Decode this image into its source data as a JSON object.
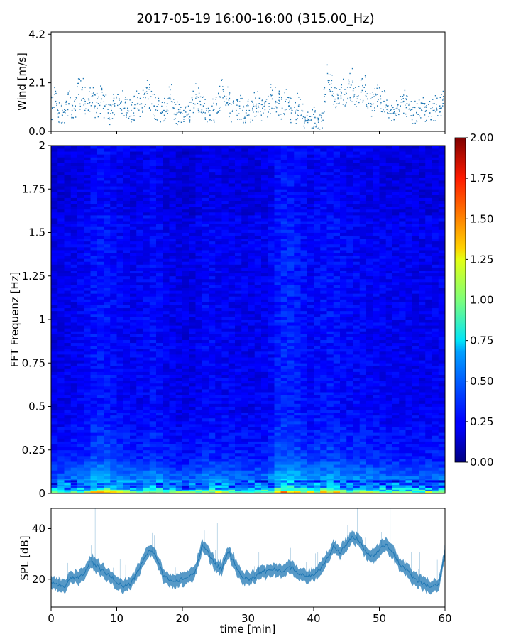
{
  "chart_data": [
    {
      "type": "scatter",
      "title": "2017-05-19 16:00-16:00 (315.00_Hz)",
      "xlabel": "",
      "ylabel": "Wind [m/s]",
      "xlim": [
        0,
        60
      ],
      "ylim": [
        0,
        4.3
      ],
      "yticks": [
        0.0,
        2.1,
        4.2
      ],
      "ytick_labels": [
        "0.0",
        "2.1",
        "4.2"
      ],
      "marker_color": "#1f77b4",
      "x": [
        0.2,
        0.7,
        1.2,
        1.7,
        2.2,
        2.7,
        3.2,
        3.7,
        4.2,
        4.7,
        5.2,
        5.7,
        6.2,
        6.7,
        7.2,
        7.7,
        8.2,
        8.7,
        9.2,
        9.7,
        10.2,
        10.7,
        11.2,
        11.7,
        12.2,
        12.7,
        13.2,
        13.7,
        14.2,
        14.7,
        15.2,
        15.7,
        16.2,
        16.7,
        17.2,
        17.7,
        18.2,
        18.7,
        19.2,
        19.7,
        20.2,
        20.7,
        21.2,
        21.7,
        22.2,
        22.7,
        23.2,
        23.7,
        24.2,
        24.7,
        25.2,
        25.7,
        26.2,
        26.7,
        27.2,
        27.7,
        28.2,
        28.7,
        29.2,
        29.7,
        30.2,
        30.7,
        31.2,
        31.7,
        32.2,
        32.7,
        33.2,
        33.7,
        34.2,
        34.7,
        35.2,
        35.7,
        36.2,
        36.7,
        37.2,
        37.7,
        38.2,
        38.7,
        39.2,
        39.7,
        40.2,
        40.7,
        41.2,
        41.7,
        42.2,
        42.7,
        43.2,
        43.7,
        44.2,
        44.7,
        45.2,
        45.7,
        46.2,
        46.7,
        47.2,
        47.7,
        48.2,
        48.7,
        49.2,
        49.7,
        50.2,
        50.7,
        51.2,
        51.7,
        52.2,
        52.7,
        53.2,
        53.7,
        54.2,
        54.7,
        55.2,
        55.7,
        56.2,
        56.7,
        57.2,
        57.7,
        58.2,
        58.7,
        59.2,
        59.7
      ],
      "y": [
        1.0,
        1.3,
        0.8,
        0.7,
        0.9,
        1.2,
        0.9,
        1.1,
        1.6,
        1.8,
        1.3,
        1.4,
        1.5,
        1.1,
        1.2,
        1.4,
        1.1,
        0.8,
        0.9,
        1.2,
        1.6,
        1.3,
        1.0,
        0.9,
        0.9,
        1.0,
        1.2,
        1.2,
        1.6,
        1.9,
        1.5,
        1.1,
        0.9,
        0.8,
        0.9,
        1.2,
        1.4,
        1.0,
        0.8,
        0.8,
        0.9,
        0.7,
        0.9,
        1.2,
        1.5,
        1.3,
        1.1,
        0.9,
        0.7,
        0.9,
        1.2,
        1.5,
        1.8,
        1.4,
        1.2,
        0.9,
        0.9,
        1.1,
        0.9,
        0.8,
        0.9,
        1.0,
        1.1,
        1.2,
        1.0,
        1.3,
        1.2,
        1.4,
        1.3,
        1.2,
        1.0,
        1.3,
        1.1,
        0.9,
        0.8,
        1.1,
        0.9,
        0.6,
        0.5,
        0.5,
        0.6,
        0.5,
        0.6,
        1.3,
        2.2,
        1.9,
        1.3,
        1.4,
        1.7,
        1.6,
        1.9,
        2.0,
        1.6,
        1.5,
        1.7,
        1.9,
        1.4,
        1.2,
        1.5,
        1.6,
        1.4,
        1.3,
        1.1,
        0.9,
        0.8,
        1.0,
        1.1,
        1.3,
        1.2,
        0.9,
        0.7,
        0.8,
        1.0,
        1.2,
        0.9,
        0.8,
        0.9,
        1.0,
        1.1,
        1.2
      ],
      "legend": "none"
    },
    {
      "type": "heatmap",
      "title": "",
      "xlabel": "",
      "ylabel": "FFT Frequenz [Hz]",
      "xlim": [
        0,
        60
      ],
      "ylim": [
        0,
        2
      ],
      "yticks": [
        0,
        0.25,
        0.5,
        0.75,
        1,
        1.25,
        1.5,
        1.75,
        2
      ],
      "ytick_labels": [
        "0",
        "0.25",
        "0.5",
        "0.75",
        "1",
        "1.25",
        "1.5",
        "1.75",
        "2"
      ],
      "colorscale": "jet",
      "colorbar": {
        "vmin": 0.0,
        "vmax": 2.0,
        "ticks": [
          0.0,
          0.25,
          0.5,
          0.75,
          1.0,
          1.25,
          1.5,
          1.75,
          2.0
        ],
        "tick_labels": [
          "0.00",
          "0.25",
          "0.50",
          "0.75",
          "1.00",
          "1.25",
          "1.50",
          "1.75",
          "2.00"
        ]
      },
      "time_bins_min": [
        0.5,
        1.5,
        2.5,
        3.5,
        4.5,
        5.5,
        6.5,
        7.5,
        8.5,
        9.5,
        10.5,
        11.5,
        12.5,
        13.5,
        14.5,
        15.5,
        16.5,
        17.5,
        18.5,
        19.5,
        20.5,
        21.5,
        22.5,
        23.5,
        24.5,
        25.5,
        26.5,
        27.5,
        28.5,
        29.5,
        30.5,
        31.5,
        32.5,
        33.5,
        34.5,
        35.5,
        36.5,
        37.5,
        38.5,
        39.5,
        40.5,
        41.5,
        42.5,
        43.5,
        44.5,
        45.5,
        46.5,
        47.5,
        48.5,
        49.5,
        50.5,
        51.5,
        52.5,
        53.5,
        54.5,
        55.5,
        56.5,
        57.5,
        58.5,
        59.5
      ],
      "level_by_time": [
        0.24,
        0.25,
        0.26,
        0.27,
        0.28,
        0.3,
        0.34,
        0.35,
        0.34,
        0.32,
        0.3,
        0.29,
        0.28,
        0.28,
        0.3,
        0.32,
        0.3,
        0.27,
        0.26,
        0.25,
        0.24,
        0.25,
        0.27,
        0.3,
        0.3,
        0.28,
        0.28,
        0.27,
        0.27,
        0.26,
        0.26,
        0.27,
        0.27,
        0.3,
        0.36,
        0.38,
        0.38,
        0.36,
        0.33,
        0.3,
        0.32,
        0.33,
        0.34,
        0.33,
        0.31,
        0.3,
        0.3,
        0.3,
        0.29,
        0.28,
        0.28,
        0.27,
        0.27,
        0.27,
        0.27,
        0.26,
        0.26,
        0.26,
        0.27,
        0.27
      ],
      "legend": "none"
    },
    {
      "type": "line",
      "title": "",
      "xlabel": "time [min]",
      "ylabel": "SPL [dB]",
      "xlim": [
        0,
        60
      ],
      "ylim": [
        9,
        48
      ],
      "xticks": [
        0,
        10,
        20,
        30,
        40,
        50,
        60
      ],
      "xtick_labels": [
        "0",
        "10",
        "20",
        "30",
        "40",
        "50",
        "60"
      ],
      "yticks": [
        20,
        40
      ],
      "ytick_labels": [
        "20",
        "40"
      ],
      "line_color": "#1f77b4",
      "x": [
        0,
        1,
        2,
        3,
        4,
        5,
        6,
        7,
        8,
        9,
        10,
        11,
        12,
        13,
        14,
        15,
        16,
        17,
        18,
        19,
        20,
        21,
        22,
        23,
        24,
        25,
        26,
        27,
        28,
        29,
        30,
        31,
        32,
        33,
        34,
        35,
        36,
        37,
        38,
        39,
        40,
        41,
        42,
        43,
        44,
        45,
        46,
        47,
        48,
        49,
        50,
        51,
        52,
        53,
        54,
        55,
        56,
        57,
        58,
        59,
        60
      ],
      "y": [
        19,
        18,
        17,
        20,
        21,
        22,
        27,
        25,
        23,
        21,
        19,
        17,
        18,
        22,
        27,
        32,
        29,
        22,
        20,
        19,
        20,
        21,
        23,
        34,
        30,
        26,
        24,
        31,
        26,
        21,
        20,
        21,
        23,
        23,
        24,
        23,
        25,
        24,
        22,
        21,
        22,
        24,
        28,
        33,
        30,
        34,
        37,
        35,
        31,
        29,
        32,
        34,
        31,
        26,
        24,
        21,
        19,
        18,
        17,
        18,
        30
      ],
      "band_halfwidth_db": 2.5,
      "legend": "none"
    }
  ]
}
